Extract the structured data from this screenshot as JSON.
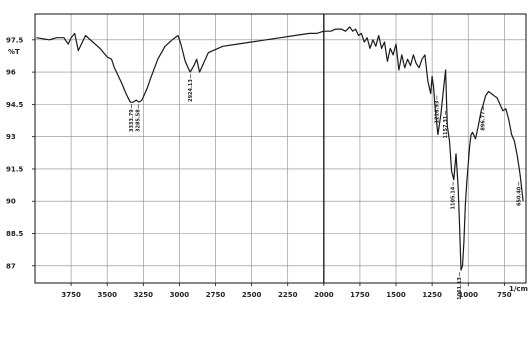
{
  "chart_data": {
    "type": "line",
    "title": "",
    "ylabel": "%T",
    "xlabel": "1/cm",
    "x_axis_reversed": true,
    "xlim": [
      4000,
      600
    ],
    "ylim": [
      86.2,
      98.7
    ],
    "x_ticks": [
      3750,
      3500,
      3250,
      3000,
      2750,
      2500,
      2250,
      2000,
      1750,
      1500,
      1250,
      1000,
      750
    ],
    "x_tick_labels": [
      "3750",
      "3500",
      "3250",
      "3000",
      "2750",
      "2500",
      "2250",
      "2000",
      "1750",
      "1500",
      "1250",
      "1000",
      "750"
    ],
    "y_ticks": [
      97.5,
      96,
      94.5,
      93,
      91.5,
      90,
      88.5,
      87
    ],
    "y_tick_labels": [
      "97.5",
      "96",
      "94.5",
      "93",
      "91.5",
      "90",
      "88.5",
      "87"
    ],
    "grid": true,
    "line_color": "#1a1a1a",
    "series": [
      {
        "x": [
          3990,
          3900,
          3850,
          3800,
          3770,
          3750,
          3725,
          3700,
          3650,
          3600,
          3550,
          3500,
          3470,
          3450,
          3400,
          3370,
          3340,
          3320,
          3300,
          3280,
          3260,
          3240,
          3220,
          3200,
          3150,
          3100,
          3050,
          3010,
          2990,
          2960,
          2940,
          2925,
          2900,
          2880,
          2860,
          2840,
          2800,
          2700,
          2600,
          2500,
          2400,
          2300,
          2200,
          2100,
          2050,
          2000,
          1950,
          1920,
          1880,
          1850,
          1820,
          1800,
          1780,
          1760,
          1740,
          1720,
          1700,
          1680,
          1660,
          1640,
          1620,
          1600,
          1580,
          1560,
          1540,
          1520,
          1500,
          1480,
          1460,
          1440,
          1420,
          1400,
          1380,
          1360,
          1340,
          1320,
          1300,
          1280,
          1260,
          1250,
          1240,
          1230,
          1210,
          1190,
          1170,
          1157,
          1145,
          1130,
          1115,
          1100,
          1085,
          1070,
          1061,
          1050,
          1040,
          1030,
          1020,
          1010,
          1000,
          990,
          980,
          970,
          950,
          930,
          910,
          896,
          880,
          860,
          840,
          820,
          800,
          780,
          760,
          740,
          720,
          700,
          680,
          660,
          640,
          620
        ],
        "y": [
          97.6,
          97.5,
          97.6,
          97.6,
          97.3,
          97.6,
          97.8,
          97.0,
          97.7,
          97.4,
          97.1,
          96.7,
          96.6,
          96.2,
          95.5,
          95.0,
          94.6,
          94.6,
          94.7,
          94.6,
          94.7,
          95.0,
          95.3,
          95.7,
          96.6,
          97.2,
          97.5,
          97.7,
          97.3,
          96.5,
          96.2,
          96.0,
          96.3,
          96.6,
          96.0,
          96.3,
          96.9,
          97.2,
          97.3,
          97.4,
          97.5,
          97.6,
          97.7,
          97.8,
          97.8,
          97.9,
          97.9,
          98.0,
          98.0,
          97.9,
          98.1,
          97.9,
          98.0,
          97.7,
          97.8,
          97.4,
          97.6,
          97.1,
          97.5,
          97.2,
          97.7,
          97.1,
          97.4,
          96.5,
          97.1,
          96.8,
          97.3,
          96.1,
          96.8,
          96.2,
          96.6,
          96.3,
          96.8,
          96.4,
          96.2,
          96.6,
          96.8,
          95.6,
          95.0,
          95.8,
          95.3,
          94.4,
          93.1,
          94.0,
          95.3,
          96.1,
          93.5,
          92.8,
          91.4,
          91.0,
          92.2,
          90.7,
          89.1,
          86.8,
          87.0,
          88.1,
          89.8,
          90.9,
          91.7,
          92.6,
          93.1,
          93.2,
          92.9,
          93.5,
          94.2,
          94.5,
          94.9,
          95.1,
          95.0,
          94.9,
          94.8,
          94.5,
          94.2,
          94.3,
          93.8,
          93.1,
          92.8,
          92.1,
          91.2,
          90.0
        ]
      }
    ],
    "peak_labels": [
      {
        "text": "3333.79",
        "x": 3333,
        "y": 94.6
      },
      {
        "text": "3285.58",
        "x": 3285,
        "y": 94.6
      },
      {
        "text": "2924.13",
        "x": 2924,
        "y": 96.0
      },
      {
        "text": "1216.93",
        "x": 1217,
        "y": 95.0
      },
      {
        "text": "1157.31",
        "x": 1157,
        "y": 94.3
      },
      {
        "text": "1105.14",
        "x": 1105,
        "y": 91.0
      },
      {
        "text": "1061.13",
        "x": 1061,
        "y": 86.8
      },
      {
        "text": "896.77",
        "x": 896,
        "y": 94.5
      },
      {
        "text": "650.40",
        "x": 650,
        "y": 91.0
      }
    ],
    "marker_line_x": 2000
  }
}
